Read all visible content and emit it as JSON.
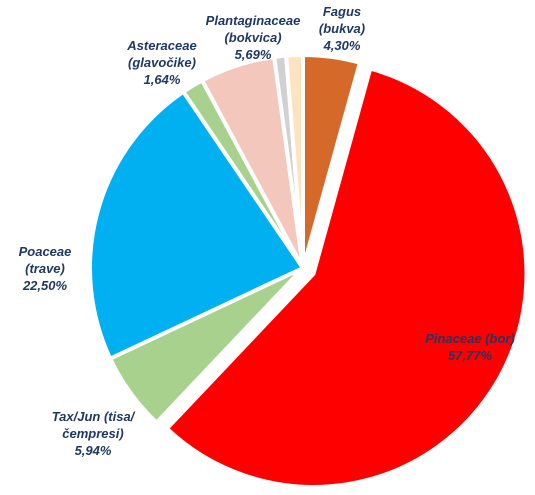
{
  "chart_data": {
    "type": "pie",
    "categories": [
      "Fagus (bukva)",
      "Pinaceae (bor)",
      "Tax/Jun (tisa/čempresi)",
      "Poaceae (trave)",
      "Asteraceae (glavočike)",
      "Plantaginaceae (bokvica)",
      null,
      null
    ],
    "values": [
      4.3,
      57.77,
      5.94,
      22.5,
      1.64,
      5.69,
      0.9,
      1.26
    ],
    "value_labels": [
      "4,30%",
      "57,77%",
      "5,94%",
      "22,50%",
      "1,64%",
      "5,69%",
      null,
      null
    ],
    "colors": [
      "#d4692a",
      "#ff0000",
      "#a9d18e",
      "#00b0f0",
      "#a9d18e",
      "#f4c7bd",
      "#d0d0d0",
      "#fde3c0"
    ],
    "exploded": [
      false,
      true,
      false,
      false,
      false,
      false,
      false,
      false
    ]
  }
}
